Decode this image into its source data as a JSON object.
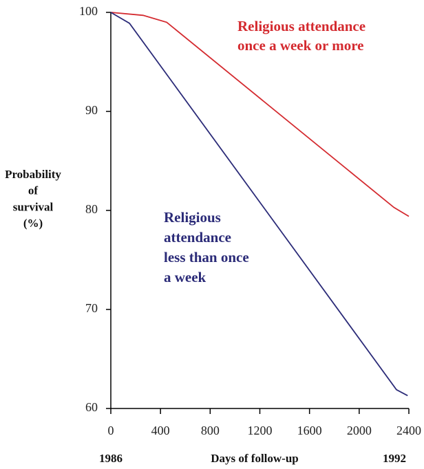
{
  "chart_data": {
    "type": "line",
    "ylabel": [
      "Probability",
      "of",
      "survival",
      "(%)"
    ],
    "xlabel": "Days of follow-up",
    "x_extra_labels": [
      {
        "value": 0,
        "label": "1986"
      },
      {
        "value": 2400,
        "label": "1992"
      }
    ],
    "xlim": [
      0,
      2400
    ],
    "xticks": [
      0,
      400,
      800,
      1200,
      1600,
      2000,
      2400
    ],
    "ylim": [
      60,
      100
    ],
    "yticks": [
      60,
      70,
      80,
      90,
      100
    ],
    "series": [
      {
        "label": [
          "Religious attendance",
          "once a week or more"
        ],
        "color": "#d42a2f",
        "x": [
          0,
          260,
          450,
          2280,
          2400
        ],
        "values": [
          100,
          99.7,
          99.0,
          80.3,
          79.4
        ]
      },
      {
        "label": [
          "Religious",
          "attendance",
          "less than once",
          "a week"
        ],
        "color": "#2b2b78",
        "x": [
          0,
          150,
          2300,
          2390
        ],
        "values": [
          100,
          98.9,
          61.9,
          61.3
        ]
      }
    ]
  }
}
